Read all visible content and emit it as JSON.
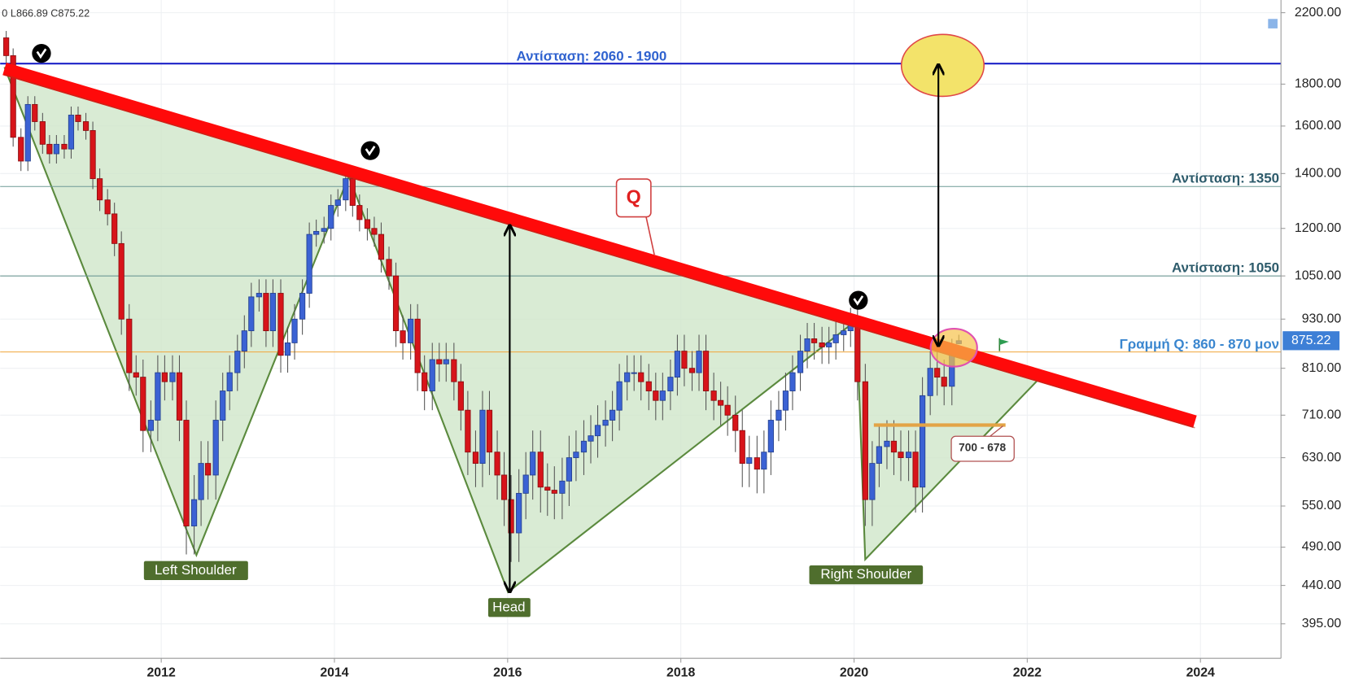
{
  "chart_data": {
    "type": "candlestick",
    "legend_text": "0  L866.89  C875.22",
    "log_scale": true,
    "grid": true,
    "up_color": "#3b62d4",
    "down_color": "#d7141a",
    "xlim": [
      2010.14,
      2024.93
    ],
    "xticks": [
      2012,
      2014,
      2016,
      2018,
      2020,
      2022,
      2024
    ],
    "ylim": [
      358.5,
      2280
    ],
    "yticks": [
      {
        "value": 395,
        "label": "395.00"
      },
      {
        "value": 440,
        "label": "440.00"
      },
      {
        "value": 490,
        "label": "490.00"
      },
      {
        "value": 550,
        "label": "550.00"
      },
      {
        "value": 630,
        "label": "630.00"
      },
      {
        "value": 710,
        "label": "710.00"
      },
      {
        "value": 810,
        "label": "810.00"
      },
      {
        "value": 930,
        "label": "930.00"
      },
      {
        "value": 1050,
        "label": "1050.00"
      },
      {
        "value": 1200,
        "label": "1200.00"
      },
      {
        "value": 1400,
        "label": "1400.00"
      },
      {
        "value": 1600,
        "label": "1600.00"
      },
      {
        "value": 1800,
        "label": "1800.00"
      },
      {
        "value": 2200,
        "label": "2200.00"
      }
    ],
    "levels": [
      {
        "value": 1907,
        "color": "#1c22c8"
      },
      {
        "value": 1350,
        "color": "#6f9a96"
      },
      {
        "value": 1050,
        "color": "#6f9a96"
      },
      {
        "value": 848,
        "color": "#f0a53a"
      }
    ],
    "annotations": {
      "resistance_top": "Αντίσταση: 2060 - 1900",
      "resistance_1350": "Αντίσταση: 1350",
      "resistance_1050": "Αντίσταση: 1050",
      "q_line": "Γραμμή Q:  860 - 870 μον",
      "q": "Q",
      "support": "700 - 678",
      "left_shoulder": "Left Shoulder",
      "head": "Head",
      "right_shoulder": "Right Shoulder"
    },
    "x": [
      2010.21,
      2010.29,
      2010.38,
      2010.46,
      2010.54,
      2010.63,
      2010.71,
      2010.79,
      2010.88,
      2010.96,
      2011.04,
      2011.13,
      2011.21,
      2011.29,
      2011.38,
      2011.46,
      2011.54,
      2011.63,
      2011.71,
      2011.79,
      2011.88,
      2011.96,
      2012.04,
      2012.13,
      2012.21,
      2012.29,
      2012.38,
      2012.46,
      2012.54,
      2012.63,
      2012.71,
      2012.79,
      2012.88,
      2012.96,
      2013.04,
      2013.13,
      2013.21,
      2013.29,
      2013.38,
      2013.46,
      2013.54,
      2013.63,
      2013.71,
      2013.79,
      2013.88,
      2013.96,
      2014.04,
      2014.13,
      2014.21,
      2014.29,
      2014.38,
      2014.46,
      2014.54,
      2014.63,
      2014.71,
      2014.79,
      2014.88,
      2014.96,
      2015.04,
      2015.13,
      2015.21,
      2015.29,
      2015.38,
      2015.46,
      2015.54,
      2015.63,
      2015.71,
      2015.79,
      2015.88,
      2015.96,
      2016.04,
      2016.13,
      2016.21,
      2016.29,
      2016.38,
      2016.46,
      2016.54,
      2016.63,
      2016.71,
      2016.79,
      2016.88,
      2016.96,
      2017.04,
      2017.13,
      2017.21,
      2017.29,
      2017.38,
      2017.46,
      2017.54,
      2017.63,
      2017.71,
      2017.79,
      2017.88,
      2017.96,
      2018.04,
      2018.13,
      2018.21,
      2018.29,
      2018.38,
      2018.46,
      2018.54,
      2018.63,
      2018.71,
      2018.79,
      2018.88,
      2018.96,
      2019.04,
      2019.13,
      2019.21,
      2019.29,
      2019.38,
      2019.46,
      2019.54,
      2019.63,
      2019.71,
      2019.79,
      2019.88,
      2019.96,
      2020.04,
      2020.13,
      2020.21,
      2020.29,
      2020.38,
      2020.46,
      2020.54,
      2020.63,
      2020.71,
      2020.79,
      2020.88,
      2020.96,
      2021.04,
      2021.13,
      2021.21
    ],
    "open": [
      2050,
      1950,
      1550,
      1450,
      1700,
      1620,
      1520,
      1480,
      1520,
      1500,
      1650,
      1620,
      1580,
      1380,
      1300,
      1250,
      1150,
      930,
      800,
      790,
      680,
      700,
      800,
      780,
      800,
      700,
      520,
      560,
      620,
      600,
      700,
      760,
      800,
      850,
      900,
      990,
      1000,
      900,
      1000,
      840,
      870,
      930,
      1000,
      1180,
      1190,
      1200,
      1280,
      1300,
      1380,
      1280,
      1230,
      1200,
      1180,
      1100,
      1050,
      900,
      870,
      930,
      800,
      760,
      830,
      820,
      830,
      780,
      720,
      640,
      620,
      720,
      640,
      600,
      560,
      510,
      570,
      600,
      640,
      580,
      575,
      570,
      590,
      630,
      640,
      660,
      670,
      690,
      700,
      720,
      780,
      800,
      800,
      780,
      760,
      740,
      760,
      790,
      850,
      810,
      800,
      850,
      760,
      740,
      730,
      710,
      680,
      620,
      630,
      610,
      640,
      700,
      720,
      760,
      800,
      850,
      880,
      870,
      860,
      870,
      890,
      900,
      920,
      780,
      560,
      620,
      650,
      660,
      640,
      630,
      640,
      580,
      750,
      810,
      790,
      770,
      868
    ],
    "high": [
      2090,
      1990,
      1590,
      1740,
      1740,
      1660,
      1560,
      1560,
      1560,
      1690,
      1690,
      1660,
      1620,
      1420,
      1340,
      1290,
      1190,
      970,
      840,
      830,
      740,
      840,
      840,
      840,
      840,
      740,
      600,
      660,
      660,
      740,
      800,
      840,
      890,
      940,
      1030,
      1040,
      1040,
      1040,
      1040,
      910,
      970,
      1040,
      1220,
      1230,
      1240,
      1320,
      1340,
      1420,
      1420,
      1320,
      1270,
      1240,
      1220,
      1140,
      1090,
      940,
      970,
      970,
      840,
      870,
      870,
      870,
      870,
      820,
      760,
      680,
      760,
      760,
      680,
      640,
      600,
      610,
      640,
      680,
      680,
      620,
      615,
      630,
      670,
      680,
      700,
      710,
      730,
      740,
      760,
      820,
      840,
      840,
      840,
      820,
      800,
      800,
      830,
      890,
      890,
      850,
      890,
      890,
      800,
      780,
      770,
      750,
      720,
      670,
      670,
      680,
      740,
      760,
      800,
      840,
      890,
      920,
      920,
      910,
      910,
      930,
      940,
      960,
      960,
      820,
      660,
      690,
      700,
      700,
      680,
      680,
      680,
      790,
      850,
      850,
      830,
      880,
      890
    ],
    "low": [
      1910,
      1510,
      1410,
      1410,
      1580,
      1480,
      1440,
      1440,
      1460,
      1460,
      1580,
      1540,
      1340,
      1260,
      1210,
      1110,
      890,
      760,
      750,
      640,
      640,
      660,
      740,
      740,
      660,
      480,
      480,
      520,
      560,
      560,
      660,
      720,
      760,
      810,
      860,
      950,
      860,
      860,
      800,
      800,
      830,
      890,
      960,
      1140,
      1150,
      1160,
      1240,
      1260,
      1240,
      1190,
      1160,
      1140,
      1060,
      1010,
      860,
      830,
      830,
      760,
      720,
      720,
      780,
      780,
      740,
      680,
      600,
      580,
      580,
      600,
      560,
      520,
      470,
      470,
      530,
      560,
      540,
      535,
      530,
      530,
      550,
      590,
      600,
      620,
      630,
      650,
      660,
      680,
      740,
      760,
      740,
      720,
      700,
      700,
      720,
      750,
      770,
      760,
      760,
      720,
      700,
      690,
      670,
      640,
      580,
      580,
      570,
      570,
      600,
      660,
      680,
      720,
      760,
      810,
      830,
      820,
      820,
      830,
      850,
      860,
      740,
      520,
      520,
      580,
      610,
      600,
      590,
      590,
      540,
      540,
      710,
      750,
      730,
      730,
      866.89
    ],
    "close": [
      1950,
      1550,
      1450,
      1700,
      1620,
      1520,
      1480,
      1520,
      1500,
      1650,
      1620,
      1580,
      1380,
      1300,
      1250,
      1150,
      930,
      800,
      790,
      680,
      700,
      800,
      780,
      800,
      700,
      520,
      560,
      620,
      600,
      700,
      760,
      800,
      850,
      900,
      990,
      1000,
      900,
      1000,
      840,
      870,
      930,
      1000,
      1180,
      1190,
      1200,
      1280,
      1300,
      1380,
      1280,
      1230,
      1200,
      1180,
      1100,
      1050,
      900,
      870,
      930,
      800,
      760,
      830,
      820,
      830,
      780,
      720,
      640,
      620,
      720,
      640,
      600,
      560,
      510,
      570,
      600,
      640,
      580,
      575,
      570,
      590,
      630,
      640,
      660,
      670,
      690,
      700,
      720,
      780,
      800,
      800,
      780,
      760,
      740,
      760,
      790,
      850,
      810,
      800,
      850,
      760,
      740,
      730,
      710,
      680,
      620,
      630,
      610,
      640,
      700,
      720,
      760,
      800,
      850,
      880,
      870,
      860,
      870,
      890,
      900,
      920,
      780,
      560,
      620,
      650,
      660,
      640,
      630,
      640,
      580,
      750,
      810,
      790,
      770,
      840,
      875.22
    ]
  }
}
